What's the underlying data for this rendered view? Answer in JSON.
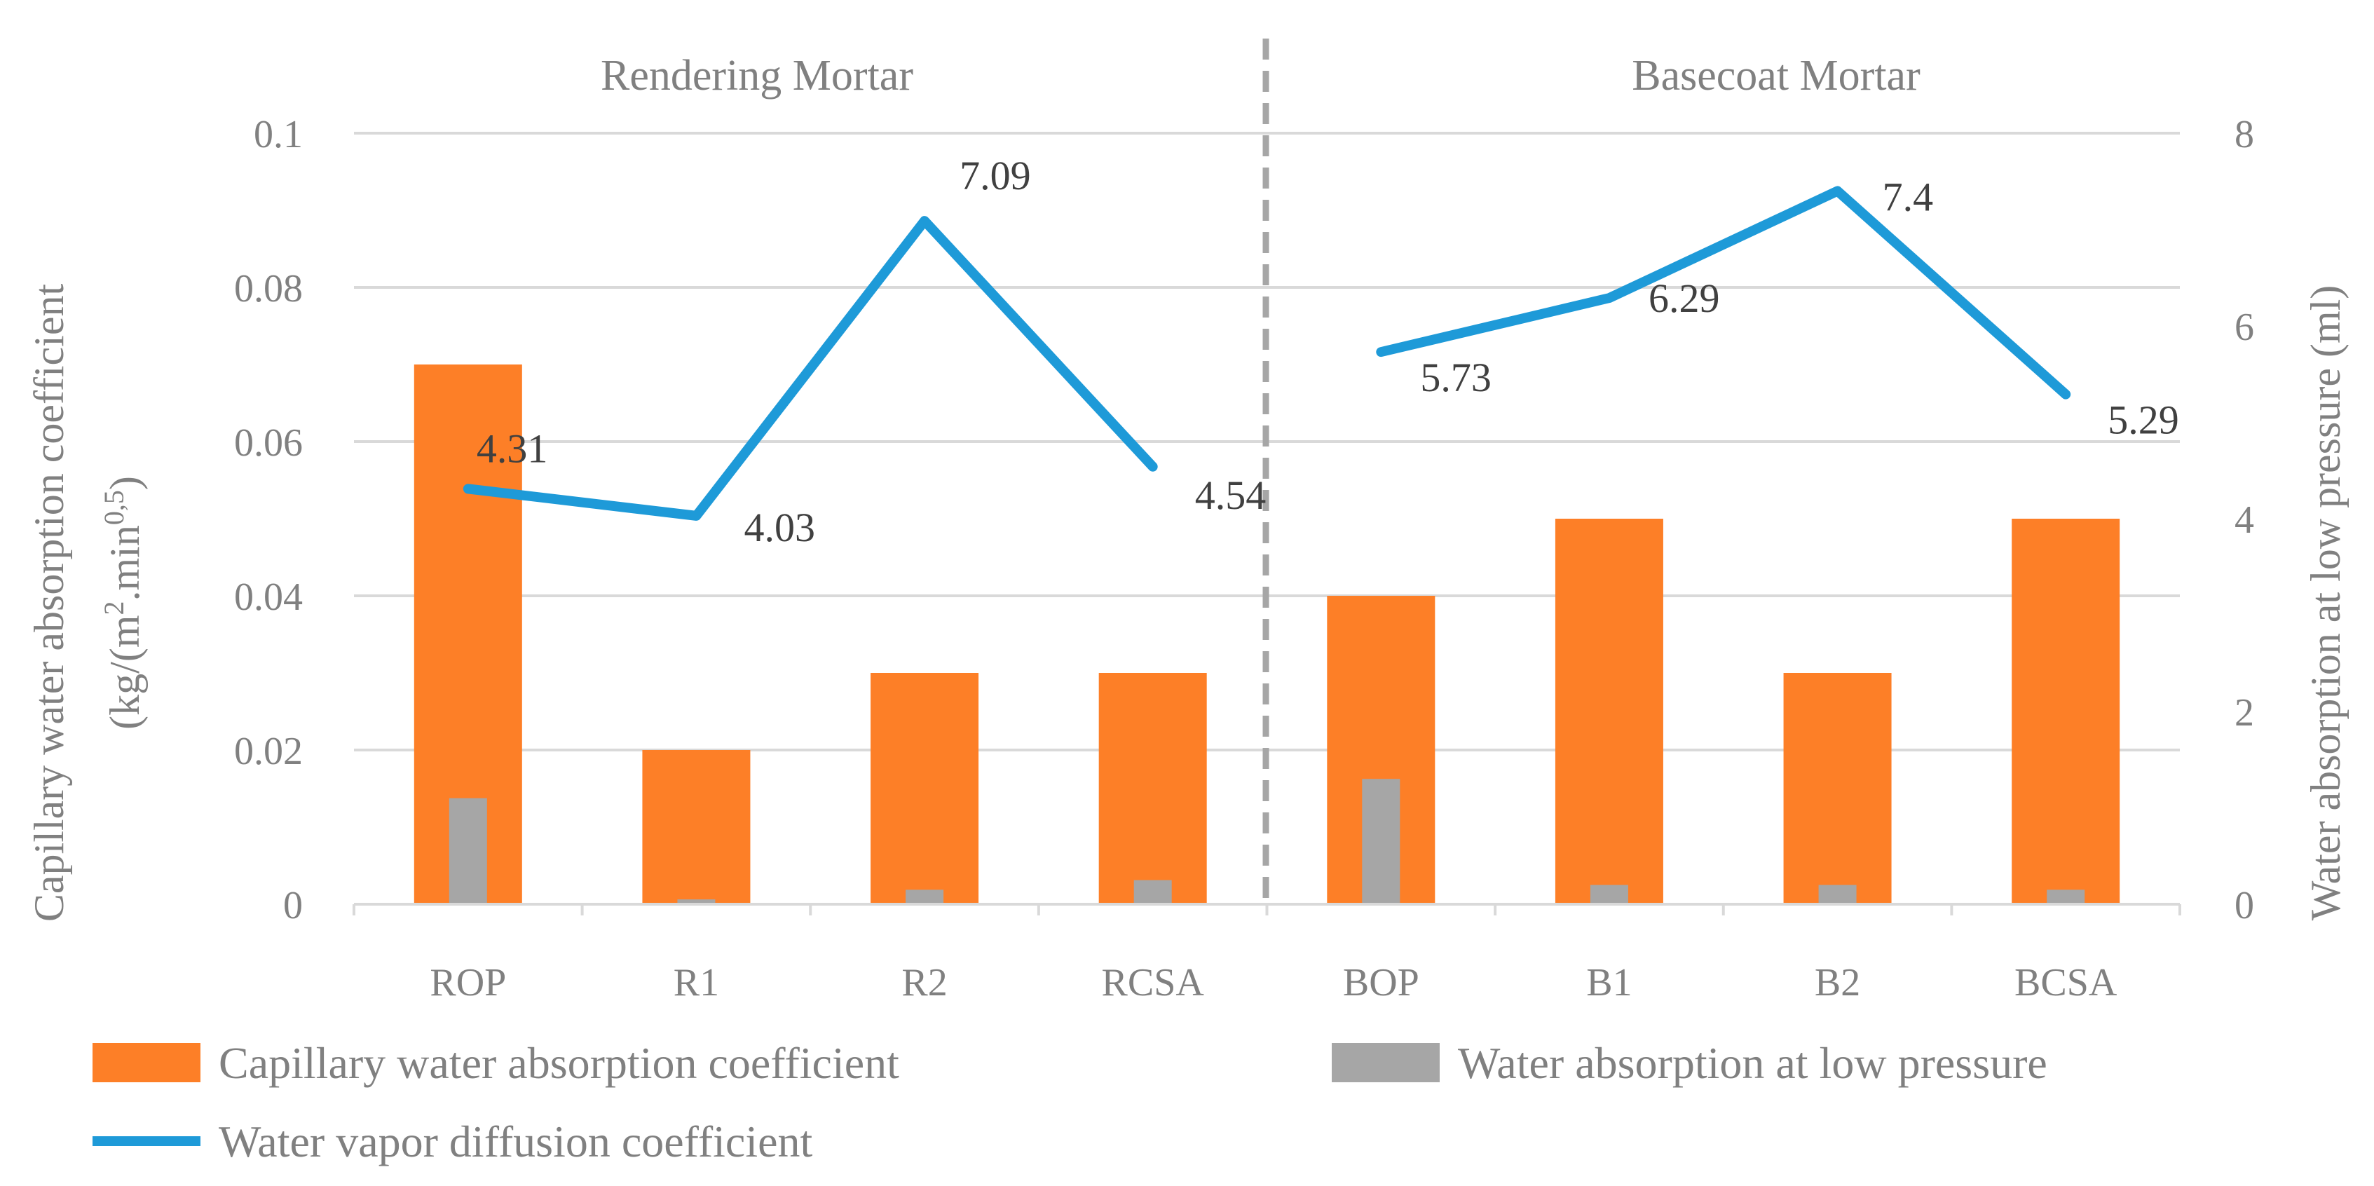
{
  "chart_data": {
    "type": "bar",
    "categories": [
      "ROP",
      "R1",
      "R2",
      "RCSA",
      "BOP",
      "B1",
      "B2",
      "BCSA"
    ],
    "groups": [
      {
        "name": "Rendering Mortar",
        "categories": [
          "ROP",
          "R1",
          "R2",
          "RCSA"
        ]
      },
      {
        "name": "Basecoat Mortar",
        "categories": [
          "BOP",
          "B1",
          "B2",
          "BCSA"
        ]
      }
    ],
    "series": [
      {
        "name": "Capillary water absorption coefficient",
        "type": "bar",
        "axis": "left",
        "color": "#fd7f27",
        "values": [
          0.07,
          0.02,
          0.03,
          0.03,
          0.04,
          0.05,
          0.03,
          0.05
        ]
      },
      {
        "name": "Water absorption at low pressure",
        "type": "bar",
        "axis": "right",
        "color": "#a6a6a6",
        "values": [
          1.1,
          0.05,
          0.15,
          0.25,
          1.3,
          0.2,
          0.2,
          0.15
        ]
      },
      {
        "name": "Water vapor diffusion coefficient",
        "type": "line",
        "axis": "right",
        "color": "#1e9ad8",
        "categories": [
          "ROP",
          "R1",
          "R2",
          "RCSA",
          "BOP",
          "B1",
          "B2",
          "BCSA"
        ],
        "values": [
          4.31,
          4.03,
          7.09,
          4.54,
          5.73,
          6.29,
          7.4,
          5.29
        ],
        "labels": [
          "4.31",
          "4.03",
          "7.09",
          "4.54",
          "5.73",
          "6.29",
          "7.4",
          "5.29"
        ]
      }
    ],
    "left_axis": {
      "label_line1": "Capillary water absorption coefficient",
      "label_line2_prefix": "(kg/(m",
      "label_line2_sup1": "2",
      "label_line2_mid": ".min",
      "label_line2_sup2": "0,5",
      "label_line2_suffix": ")",
      "ylim": [
        0,
        0.1
      ],
      "ticks": [
        "0",
        "0.02",
        "0.04",
        "0.06",
        "0.08",
        "0.1"
      ],
      "tick_values": [
        0,
        0.02,
        0.04,
        0.06,
        0.08,
        0.1
      ]
    },
    "right_axis": {
      "label": "Water absorption at low pressure (ml)",
      "ylim": [
        0,
        8
      ],
      "ticks": [
        "0",
        "2",
        "4",
        "6",
        "8"
      ],
      "tick_values": [
        0,
        2,
        4,
        6,
        8
      ]
    },
    "legend": {
      "position": "bottom",
      "items": [
        "Capillary water absorption coefficient",
        "Water absorption at low pressure",
        "Water vapor diffusion coefficient"
      ]
    },
    "grid": true
  }
}
